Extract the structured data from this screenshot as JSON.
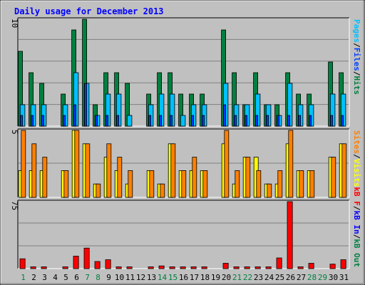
{
  "chart_data": {
    "type": "bar",
    "title": "Daily usage for December 2013",
    "days": [
      "1",
      "2",
      "3",
      "4",
      "5",
      "6",
      "7",
      "8",
      "9",
      "10",
      "11",
      "12",
      "13",
      "14",
      "15",
      "16",
      "17",
      "18",
      "19",
      "20",
      "21",
      "22",
      "23",
      "24",
      "25",
      "26",
      "27",
      "28",
      "29",
      "30",
      "31"
    ],
    "weekend_days": [
      "1",
      "7",
      "8",
      "14",
      "15",
      "21",
      "22",
      "28",
      "29"
    ],
    "panels": [
      {
        "id": "hits-files-pages",
        "y_max_label": "10",
        "ylim": [
          0,
          10
        ],
        "legend": [
          "Pages",
          "Files",
          "Hits"
        ],
        "legend_separator": "/",
        "series": [
          {
            "name": "Hits",
            "color": "#008040",
            "values": [
              7,
              5,
              4,
              0,
              3,
              9,
              10,
              2,
              5,
              5,
              4,
              0,
              3,
              5,
              5,
              3,
              3,
              3,
              0,
              9,
              5,
              2,
              5,
              2,
              2,
              5,
              3,
              3,
              0,
              6,
              5
            ]
          },
          {
            "name": "Files",
            "color": "#00c0ff",
            "values": [
              2,
              2,
              2,
              0,
              2,
              5,
              4,
              1,
              3,
              3,
              1,
              0,
              2,
              3,
              3,
              1,
              2,
              2,
              0,
              4,
              2,
              2,
              3,
              2,
              1,
              4,
              2,
              2,
              0,
              3,
              3
            ]
          },
          {
            "name": "Pages",
            "color": "#0040ff",
            "values": [
              1,
              1,
              1,
              0,
              1,
              2,
              4,
              1,
              1,
              1,
              0,
              0,
              1,
              1,
              1,
              0,
              1,
              1,
              0,
              2,
              1,
              1,
              1,
              1,
              1,
              1,
              1,
              1,
              0,
              1,
              1
            ]
          }
        ]
      },
      {
        "id": "visits-sites",
        "y_max_label": "5",
        "ylim": [
          0,
          5
        ],
        "legend": [
          "Sites",
          "Visits"
        ],
        "legend_separator": "/",
        "series": [
          {
            "name": "Visits",
            "color": "#ffff00",
            "values": [
              2,
              2,
              2,
              0,
              2,
              5,
              4,
              1,
              3,
              2,
              1,
              0,
              2,
              1,
              4,
              2,
              2,
              2,
              0,
              4,
              1,
              3,
              3,
              1,
              1,
              4,
              2,
              2,
              0,
              3,
              4
            ]
          },
          {
            "name": "Sites",
            "color": "#ff8000",
            "values": [
              5,
              4,
              3,
              0,
              2,
              5,
              4,
              1,
              4,
              3,
              2,
              0,
              2,
              1,
              4,
              2,
              3,
              2,
              0,
              5,
              2,
              3,
              2,
              1,
              2,
              5,
              2,
              2,
              0,
              3,
              4
            ]
          }
        ]
      },
      {
        "id": "kbf-kbin-kbout",
        "y_max_label": "75",
        "ylim": [
          0,
          75
        ],
        "legend": [
          "kB F",
          "kB In",
          "kB Out"
        ],
        "legend_separator": "/",
        "series": [
          {
            "name": "kB F",
            "color": "#ff0000",
            "values": [
              11,
              2,
              2,
              0,
              2,
              14,
              23,
              8,
              10,
              2,
              2,
              0,
              2,
              3,
              2,
              2,
              2,
              2,
              0,
              6,
              2,
              2,
              2,
              2,
              12,
              76,
              2,
              6,
              0,
              5,
              10
            ]
          }
        ]
      }
    ],
    "colors": {
      "background": "#c0c0c0",
      "grid": "#808080",
      "title": "#0000ff",
      "weekday_label": "#000000",
      "weekend_label": "#008040",
      "legend_pages": "#00c0ff",
      "legend_files": "#0040ff",
      "legend_hits": "#008040",
      "legend_sites": "#ff8000",
      "legend_visits": "#ffff00",
      "legend_kbf": "#ff0000",
      "legend_kbin": "#0000ff",
      "legend_kbout": "#008040",
      "separator": "#000000"
    },
    "grid": true
  }
}
